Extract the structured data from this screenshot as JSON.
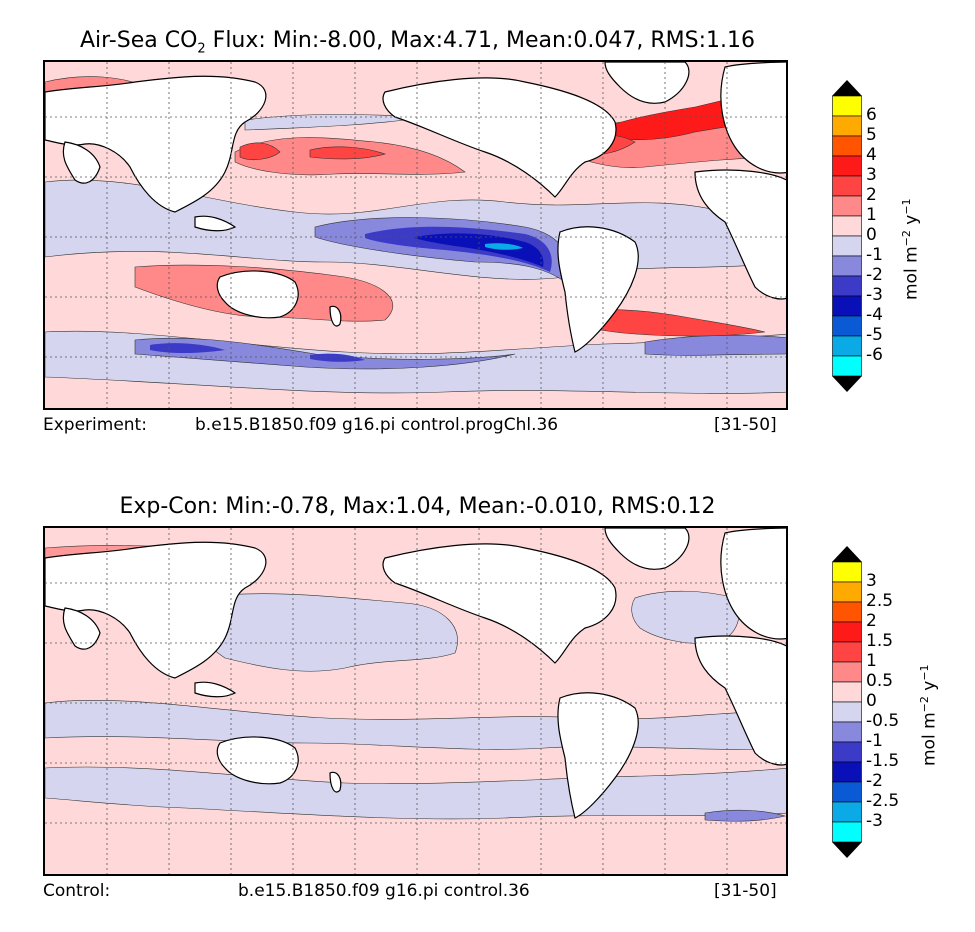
{
  "panels": [
    {
      "title_prefix": "Air-Sea CO",
      "title_sub": "2",
      "title_rest": " Flux: Min:-8.00, Max:4.71, Mean:0.047, RMS:1.16",
      "info_label": "Experiment:",
      "info_case": "b.e15.B1850.f09 g16.pi control.progChl.36",
      "info_years": "[31-50]",
      "colorbar": {
        "ticks": [
          "6",
          "5",
          "4",
          "3",
          "2",
          "1",
          "0",
          "-1",
          "-2",
          "-3",
          "-4",
          "-5",
          "-6"
        ],
        "colors": [
          "#ffff00",
          "#ffaa00",
          "#ff5500",
          "#ff1a1a",
          "#ff4444",
          "#ff8888",
          "#ffd9d9",
          "#d5d5f0",
          "#8888dd",
          "#3b3bc8",
          "#0a10b8",
          "#0a5ad6",
          "#0aaae6",
          "#00ffff"
        ],
        "label_main": "mol m",
        "label_sup1": "−2",
        "label_mid": " y",
        "label_sup2": "−1"
      }
    },
    {
      "title_prefix": "Exp-Con: Min:-0.78, Max:1.04, Mean:-0.010, RMS:0.12",
      "title_sub": "",
      "title_rest": "",
      "info_label": "Control:",
      "info_case": "b.e15.B1850.f09 g16.pi control.36",
      "info_years": "[31-50]",
      "colorbar": {
        "ticks": [
          "3",
          "2.5",
          "2",
          "1.5",
          "1",
          "0.5",
          "0",
          "-0.5",
          "-1",
          "-1.5",
          "-2",
          "-2.5",
          "-3"
        ],
        "colors": [
          "#ffff00",
          "#ffaa00",
          "#ff5500",
          "#ff1a1a",
          "#ff4444",
          "#ff8888",
          "#ffd9d9",
          "#d5d5f0",
          "#8888dd",
          "#3b3bc8",
          "#0a10b8",
          "#0a5ad6",
          "#0aaae6",
          "#00ffff"
        ],
        "label_main": "mol m",
        "label_sup1": "−2",
        "label_mid": " y",
        "label_sup2": "−1"
      }
    }
  ]
}
